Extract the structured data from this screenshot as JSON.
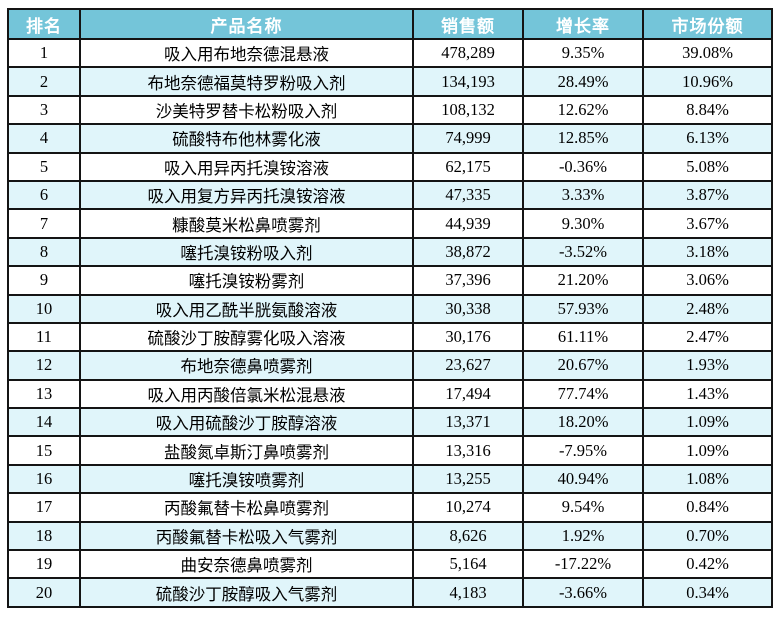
{
  "colors": {
    "header_bg": "#74C5D9",
    "header_text": "#FFFFFF",
    "row_alt_bg": "#E0F5FA",
    "row_bg": "#FFFFFF",
    "border": "#141414",
    "text": "#000000"
  },
  "chart_data": {
    "type": "table",
    "title": "",
    "columns": [
      "排名",
      "产品名称",
      "销售额",
      "增长率",
      "市场份额"
    ],
    "rows": [
      [
        "1",
        "吸入用布地奈德混悬液",
        "478,289",
        "9.35%",
        "39.08%"
      ],
      [
        "2",
        "布地奈德福莫特罗粉吸入剂",
        "134,193",
        "28.49%",
        "10.96%"
      ],
      [
        "3",
        "沙美特罗替卡松粉吸入剂",
        "108,132",
        "12.62%",
        "8.84%"
      ],
      [
        "4",
        "硫酸特布他林雾化液",
        "74,999",
        "12.85%",
        "6.13%"
      ],
      [
        "5",
        "吸入用异丙托溴铵溶液",
        "62,175",
        "-0.36%",
        "5.08%"
      ],
      [
        "6",
        "吸入用复方异丙托溴铵溶液",
        "47,335",
        "3.33%",
        "3.87%"
      ],
      [
        "7",
        "糠酸莫米松鼻喷雾剂",
        "44,939",
        "9.30%",
        "3.67%"
      ],
      [
        "8",
        "噻托溴铵粉吸入剂",
        "38,872",
        "-3.52%",
        "3.18%"
      ],
      [
        "9",
        "噻托溴铵粉雾剂",
        "37,396",
        "21.20%",
        "3.06%"
      ],
      [
        "10",
        "吸入用乙酰半胱氨酸溶液",
        "30,338",
        "57.93%",
        "2.48%"
      ],
      [
        "11",
        "硫酸沙丁胺醇雾化吸入溶液",
        "30,176",
        "61.11%",
        "2.47%"
      ],
      [
        "12",
        "布地奈德鼻喷雾剂",
        "23,627",
        "20.67%",
        "1.93%"
      ],
      [
        "13",
        "吸入用丙酸倍氯米松混悬液",
        "17,494",
        "77.74%",
        "1.43%"
      ],
      [
        "14",
        "吸入用硫酸沙丁胺醇溶液",
        "13,371",
        "18.20%",
        "1.09%"
      ],
      [
        "15",
        "盐酸氮卓斯汀鼻喷雾剂",
        "13,316",
        "-7.95%",
        "1.09%"
      ],
      [
        "16",
        "噻托溴铵喷雾剂",
        "13,255",
        "40.94%",
        "1.08%"
      ],
      [
        "17",
        "丙酸氟替卡松鼻喷雾剂",
        "10,274",
        "9.54%",
        "0.84%"
      ],
      [
        "18",
        "丙酸氟替卡松吸入气雾剂",
        "8,626",
        "1.92%",
        "0.70%"
      ],
      [
        "19",
        "曲安奈德鼻喷雾剂",
        "5,164",
        "-17.22%",
        "0.42%"
      ],
      [
        "20",
        "硫酸沙丁胺醇吸入气雾剂",
        "4,183",
        "-3.66%",
        "0.34%"
      ]
    ]
  }
}
